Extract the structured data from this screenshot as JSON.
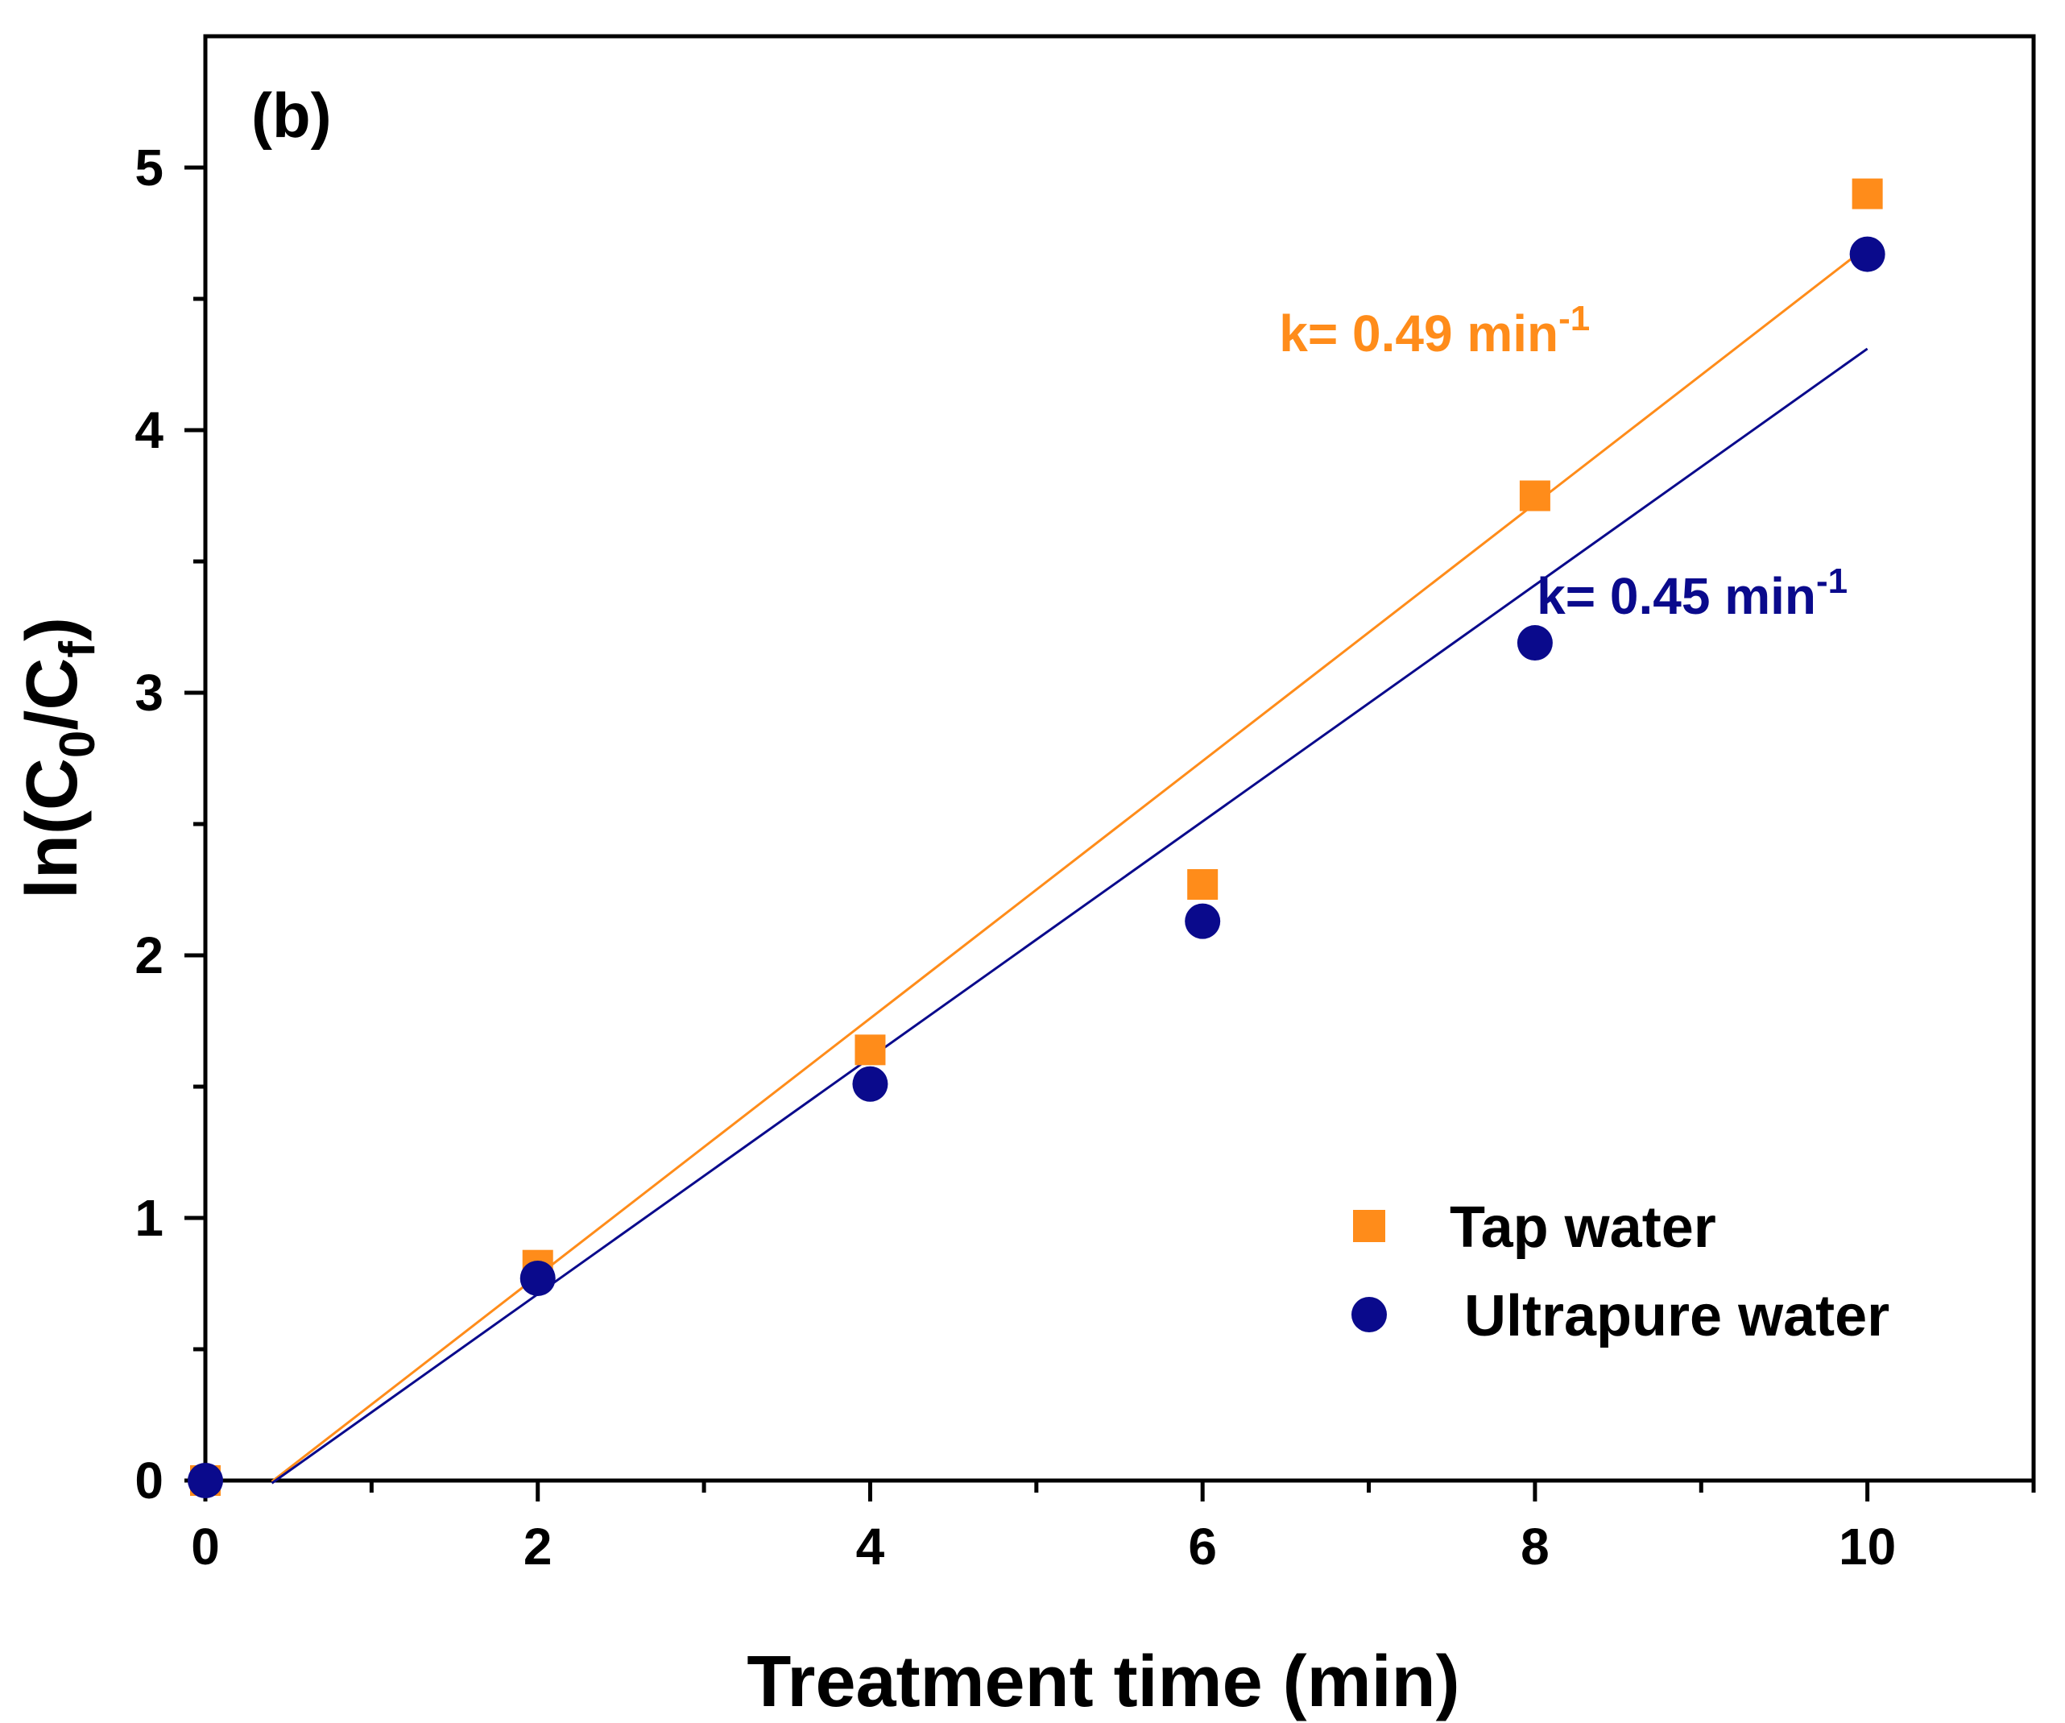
{
  "chart_data": {
    "type": "scatter",
    "panel_label": "(b)",
    "xlabel": "Treatment time (min)",
    "ylabel": {
      "main": "ln(C",
      "sub1": "0",
      "mid": "/C",
      "sub2": "f",
      "end": ")"
    },
    "xlim": [
      0,
      11
    ],
    "ylim": [
      0,
      5.5
    ],
    "x_major_ticks": [
      0,
      2,
      4,
      6,
      8,
      10
    ],
    "x_minor_ticks": [
      1,
      3,
      5,
      7,
      9,
      11
    ],
    "y_major_ticks": [
      0,
      1,
      2,
      3,
      4,
      5
    ],
    "y_minor_ticks": [
      0.5,
      1.5,
      2.5,
      3.5,
      4.5
    ],
    "x_tick_labels": [
      "0",
      "2",
      "4",
      "6",
      "8",
      "10"
    ],
    "y_tick_labels": [
      "0",
      "1",
      "2",
      "3",
      "4",
      "5"
    ],
    "grid": false,
    "legend_position": "bottom-right",
    "series": [
      {
        "name": "Tap water",
        "marker": "square",
        "color": "#ff8c1a",
        "x": [
          0,
          2,
          4,
          6,
          8,
          10
        ],
        "y": [
          0,
          0.82,
          1.64,
          2.27,
          3.75,
          4.9
        ],
        "fit": {
          "slope": 0.49,
          "intercept": -0.2,
          "x_range": [
            0.4,
            10
          ]
        },
        "annotation": {
          "prefix": "k= 0.49 min",
          "sup": "-1",
          "at": [
            6.8,
            4.3
          ]
        }
      },
      {
        "name": "Ultrapure water",
        "marker": "circle",
        "color": "#0a0a8c",
        "x": [
          0,
          2,
          4,
          6,
          8,
          10
        ],
        "y": [
          0,
          0.77,
          1.51,
          2.13,
          3.19,
          4.67
        ],
        "fit": {
          "slope": 0.45,
          "intercept": -0.19,
          "x_range": [
            0.4,
            10
          ]
        },
        "annotation": {
          "prefix": "k= 0.45 min",
          "sup": "-1",
          "at": [
            8.35,
            3.3
          ]
        }
      }
    ]
  }
}
